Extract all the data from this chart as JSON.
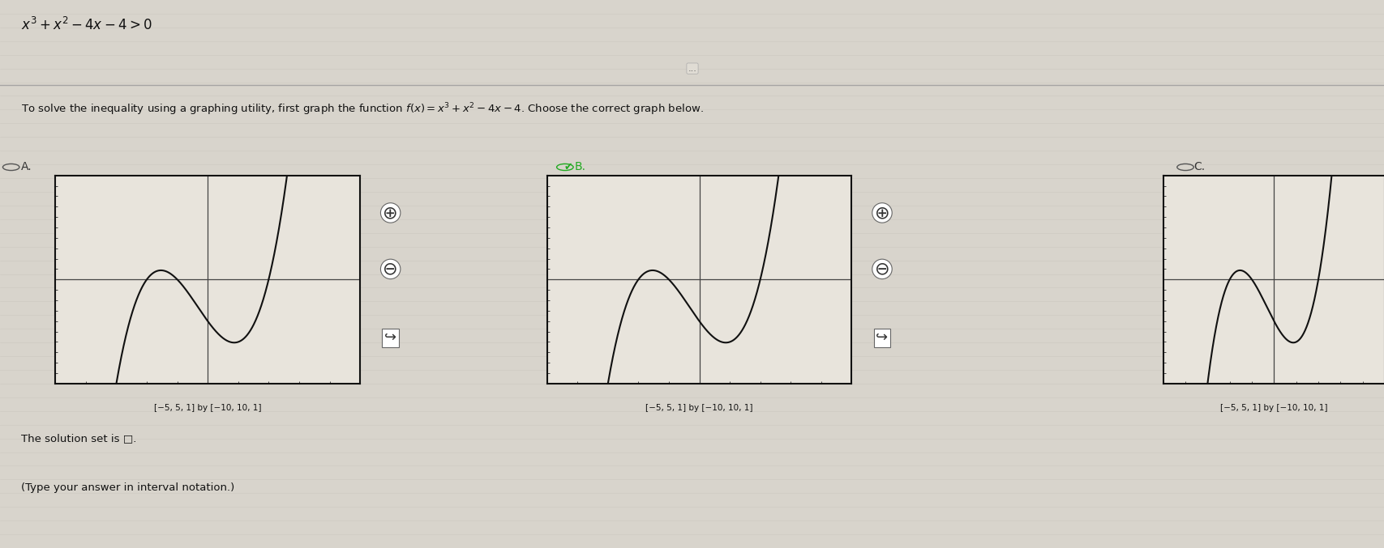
{
  "title_top": "x³ + x² − 4x − 4 > 0",
  "instruction": "To solve the inequality using a graphing utility, first graph the function f(x) = x³ + x² − 4x − 4. Choose the correct graph below.",
  "solution_text": "The solution set is",
  "interval_text": "(Type your answer in interval notation.)",
  "window_label": "[−5, 5, 1] by [−10, 10, 1]",
  "xmin": -5,
  "xmax": 5,
  "ymin": -10,
  "ymax": 10,
  "bg_color": "#d8d4cc",
  "plot_bg": "#e8e4dc",
  "line_color": "#c8c4bc",
  "graph_box_color": "#111111",
  "curve_color": "#111111",
  "axis_color": "#444444",
  "tick_color": "#444444",
  "text_color": "#111111",
  "label_color_A": "#333333",
  "label_color_B": "#22aa22",
  "label_color_C": "#333333",
  "divider_color": "#999999",
  "radio_color": "#555555"
}
